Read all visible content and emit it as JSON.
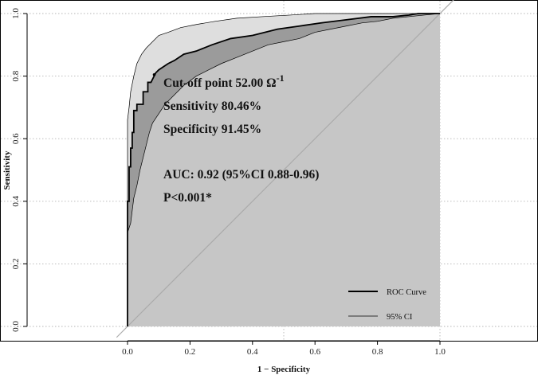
{
  "chart_data": {
    "type": "line",
    "xlabel": "1 − Specificity",
    "ylabel": "Sensitivity",
    "xlim": [
      0,
      1
    ],
    "ylim": [
      0,
      1
    ],
    "xticks": [
      0.0,
      0.2,
      0.4,
      0.6,
      0.8,
      1.0
    ],
    "yticks": [
      0.0,
      0.2,
      0.4,
      0.6,
      0.8,
      1.0
    ],
    "xtick_labels": [
      "0.0",
      "0.2",
      "0.4",
      "0.6",
      "0.8",
      "1.0"
    ],
    "ytick_labels": [
      "0.0",
      "0.2",
      "0.4",
      "0.6",
      "0.8",
      "1.0"
    ],
    "grid": "dotted",
    "legend_position": "bottom-right",
    "series": [
      {
        "name": "ROC Curve",
        "color": "#000000",
        "x": [
          0.0,
          0.0,
          0.005,
          0.005,
          0.01,
          0.01,
          0.015,
          0.015,
          0.02,
          0.02,
          0.03,
          0.03,
          0.05,
          0.05,
          0.065,
          0.065,
          0.075,
          0.085,
          0.09,
          0.1,
          0.13,
          0.15,
          0.18,
          0.22,
          0.27,
          0.33,
          0.4,
          0.48,
          0.55,
          0.62,
          0.7,
          0.78,
          0.85,
          0.9,
          0.93,
          1.0
        ],
        "y": [
          0.0,
          0.4,
          0.4,
          0.51,
          0.51,
          0.57,
          0.57,
          0.62,
          0.62,
          0.69,
          0.69,
          0.71,
          0.71,
          0.75,
          0.75,
          0.78,
          0.78,
          0.8,
          0.81,
          0.82,
          0.84,
          0.85,
          0.87,
          0.88,
          0.9,
          0.92,
          0.93,
          0.95,
          0.96,
          0.97,
          0.98,
          0.99,
          0.99,
          0.995,
          1.0,
          1.0
        ]
      },
      {
        "name": "95% CI",
        "color": "#000000",
        "upper": {
          "x": [
            0.0,
            0.0,
            0.005,
            0.01,
            0.02,
            0.03,
            0.045,
            0.06,
            0.08,
            0.1,
            0.13,
            0.17,
            0.22,
            0.28,
            0.35,
            0.43,
            0.52,
            0.6,
            0.7,
            0.8,
            0.9,
            1.0
          ],
          "y": [
            0.0,
            0.66,
            0.7,
            0.75,
            0.8,
            0.84,
            0.87,
            0.89,
            0.91,
            0.93,
            0.94,
            0.955,
            0.965,
            0.975,
            0.985,
            0.99,
            0.995,
            1.0,
            1.0,
            1.0,
            1.0,
            1.0
          ]
        },
        "lower": {
          "x": [
            0.0,
            0.0,
            0.01,
            0.015,
            0.02,
            0.03,
            0.04,
            0.05,
            0.06,
            0.07,
            0.08,
            0.1,
            0.12,
            0.15,
            0.18,
            0.22,
            0.26,
            0.3,
            0.35,
            0.4,
            0.45,
            0.5,
            0.55,
            0.6,
            0.65,
            0.7,
            0.75,
            0.8,
            0.85,
            0.9,
            0.95,
            1.0
          ],
          "y": [
            0.0,
            0.3,
            0.33,
            0.37,
            0.41,
            0.45,
            0.5,
            0.54,
            0.58,
            0.62,
            0.65,
            0.68,
            0.71,
            0.74,
            0.77,
            0.8,
            0.82,
            0.84,
            0.86,
            0.88,
            0.9,
            0.91,
            0.92,
            0.94,
            0.95,
            0.96,
            0.97,
            0.975,
            0.985,
            0.99,
            0.995,
            1.0
          ]
        }
      },
      {
        "name": "",
        "color": "#aaaaaa",
        "x": [
          0.0,
          1.0
        ],
        "y": [
          0.0,
          1.0
        ]
      }
    ],
    "cutoff_point": {
      "x": 0.0855,
      "y": 0.8046
    },
    "annotations": [
      "Cut-off point 52.00 Ω",
      "-1",
      "Sensitivity 80.46%",
      "Specificity 91.45%",
      "AUC: 0.92 (95%CI 0.88-0.96)",
      "P<0.001*"
    ],
    "colors": {
      "ci_outer_fill": "#dedede",
      "ci_inner_fill": "#9b9b9b",
      "area_fill": "#c6c6c6",
      "grid": "#b5b5b5"
    }
  }
}
